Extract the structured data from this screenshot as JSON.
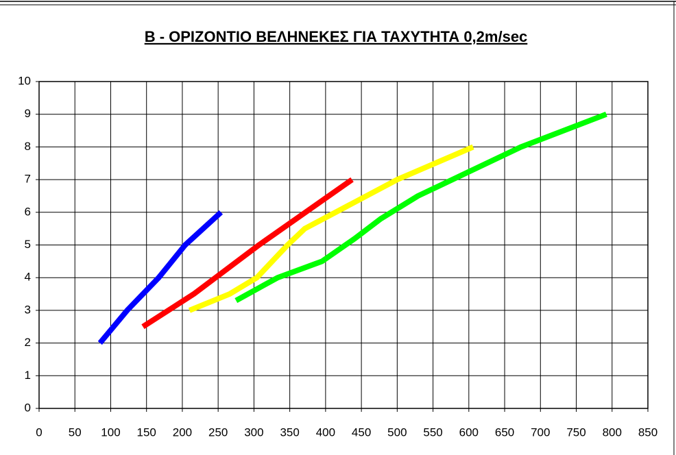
{
  "chart_data": {
    "type": "line",
    "title": "B - ΟΡΙΖΟΝΤΙΟ ΒΕΛΗΝΕΚΕΣ ΓΙΑ ΤΑΧΥΤΗΤΑ 0,2m/sec",
    "series": [
      {
        "color": "#0000ff",
        "x": [
          85,
          123,
          167,
          204,
          254
        ],
        "values": [
          2,
          3,
          4,
          5,
          6
        ]
      },
      {
        "color": "#ff0000",
        "x": [
          145,
          216,
          307,
          437
        ],
        "values": [
          2.5,
          3.5,
          5,
          7
        ]
      },
      {
        "color": "#ffff00",
        "x": [
          210,
          266,
          304,
          347,
          371,
          414,
          500,
          606
        ],
        "values": [
          3,
          3.5,
          4,
          5,
          5.5,
          6,
          7,
          8
        ]
      },
      {
        "color": "#00ff00",
        "x": [
          275,
          333,
          395,
          441,
          477,
          529,
          577,
          673,
          792
        ],
        "values": [
          3.3,
          4,
          4.5,
          5.2,
          5.8,
          6.5,
          7,
          8,
          9
        ]
      }
    ],
    "xlim": [
      0,
      850
    ],
    "xticks": [
      0,
      50,
      100,
      150,
      200,
      250,
      300,
      350,
      400,
      450,
      500,
      550,
      600,
      650,
      700,
      750,
      800,
      850
    ],
    "ylim": [
      0,
      10
    ],
    "yticks": [
      0,
      1,
      2,
      3,
      4,
      5,
      6,
      7,
      8,
      9,
      10
    ],
    "grid": true
  }
}
